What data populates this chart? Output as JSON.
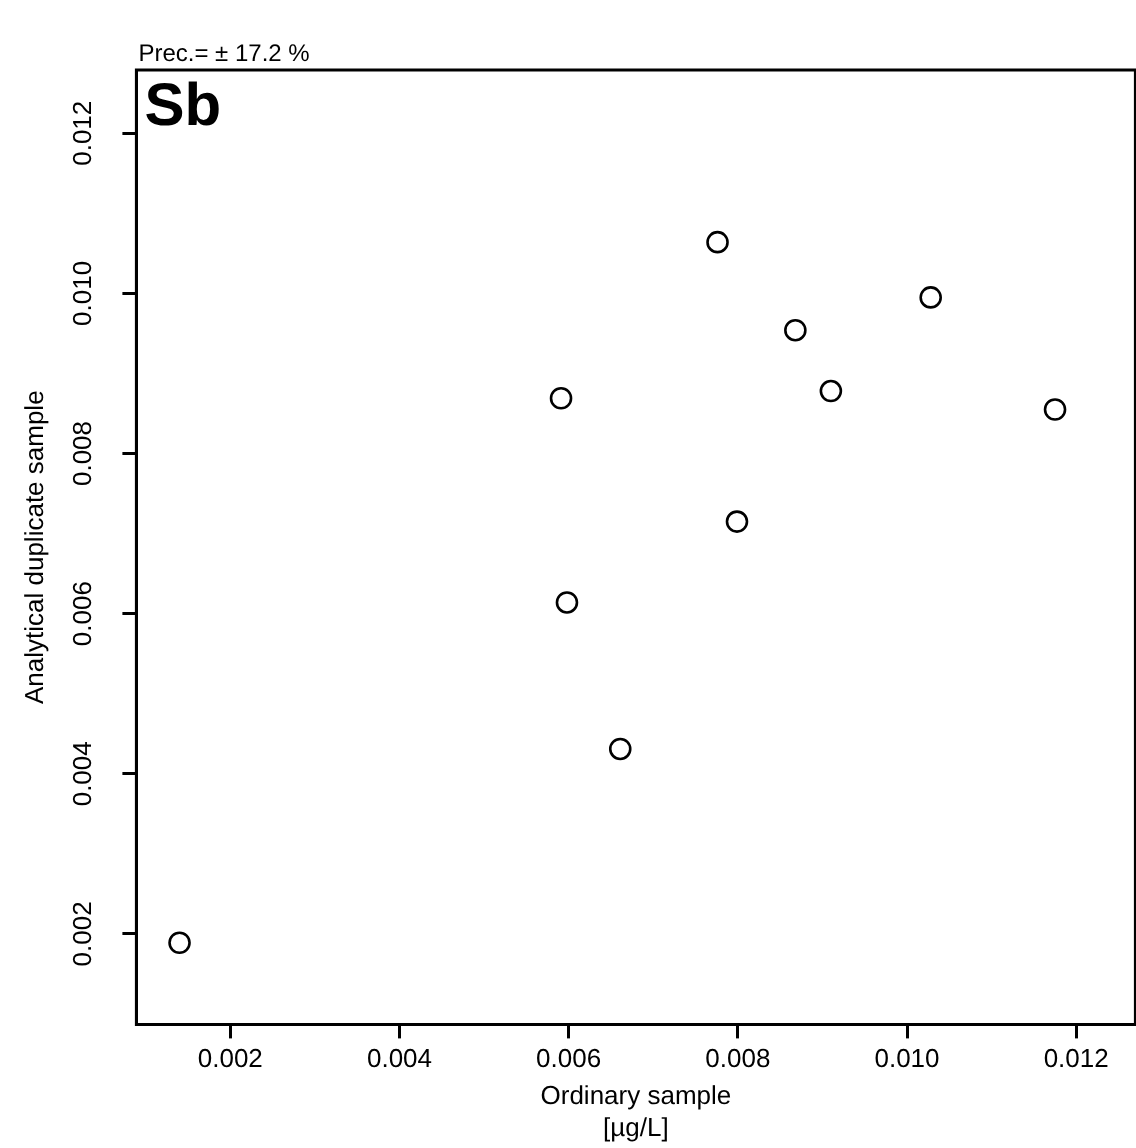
{
  "chart_data": {
    "type": "scatter",
    "title": "Sb",
    "subtitle": "Prec.= ± 17.2 %",
    "xlabel": "Ordinary sample\n[µg/L]",
    "ylabel": "Analytical duplicate sample",
    "x": [
      0.00776,
      0.01028,
      0.00868,
      0.00591,
      0.0091,
      0.01175,
      0.00799,
      0.00598,
      0.00661,
      0.0014
    ],
    "series": [
      {
        "color": "#000000",
        "values": [
          0.01064,
          0.00995,
          0.00954,
          0.00869,
          0.00878,
          0.00855,
          0.00715,
          0.00614,
          0.00431,
          0.00189
        ]
      }
    ],
    "xlim": [
      0.00089,
      0.0127
    ],
    "xticks": [
      0.002,
      0.004,
      0.006,
      0.008,
      {
        "value": 0.01,
        "label": "0.010"
      },
      0.012
    ],
    "ylim": [
      0.00087,
      0.01279
    ],
    "yticks": [
      0.002,
      0.004,
      0.006,
      0.008,
      {
        "value": 0.01,
        "label": "0.010"
      },
      0.012
    ],
    "grid": false,
    "legend": false,
    "marker": "circle"
  }
}
